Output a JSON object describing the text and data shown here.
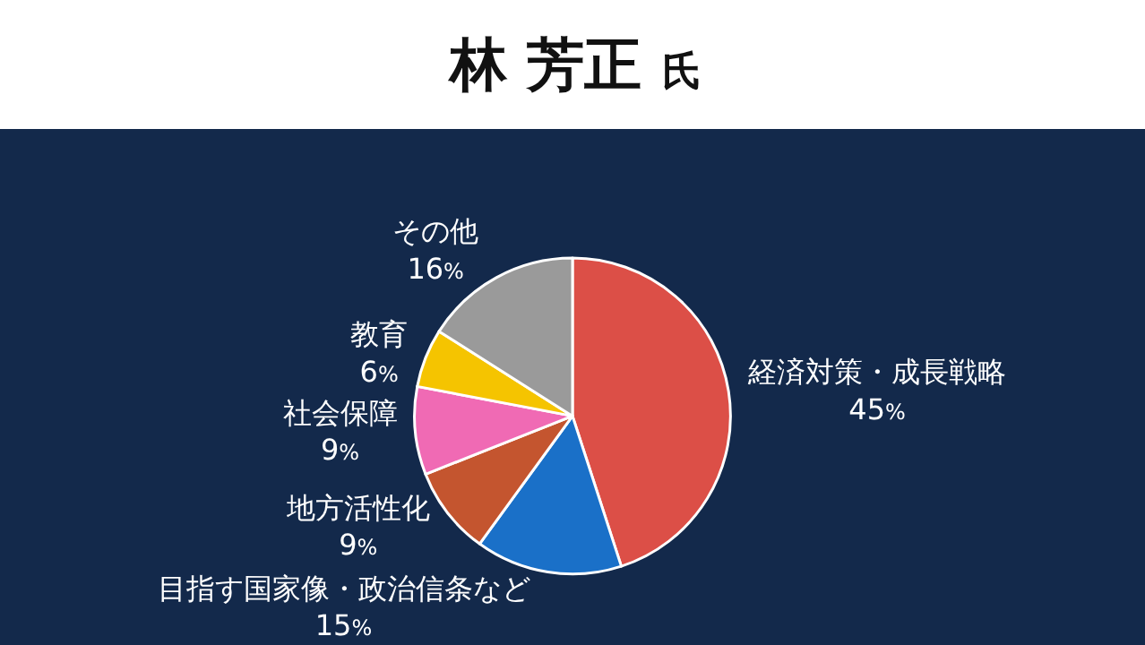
{
  "chart_data": {
    "type": "pie",
    "title": "林 芳正 氏",
    "categories": [
      "経済対策・成長戦略",
      "目指す国家像・政治信条など",
      "地方活性化",
      "社会保障",
      "教育",
      "その他"
    ],
    "values": [
      45,
      15,
      9,
      9,
      6,
      16
    ],
    "value_labels": [
      "45%",
      "15%",
      "9%",
      "9%",
      "6%",
      "16%"
    ],
    "colors": [
      "#dc4f47",
      "#1a70c8",
      "#c4552f",
      "#f06ab4",
      "#f5c400",
      "#9a9a9a"
    ]
  }
}
